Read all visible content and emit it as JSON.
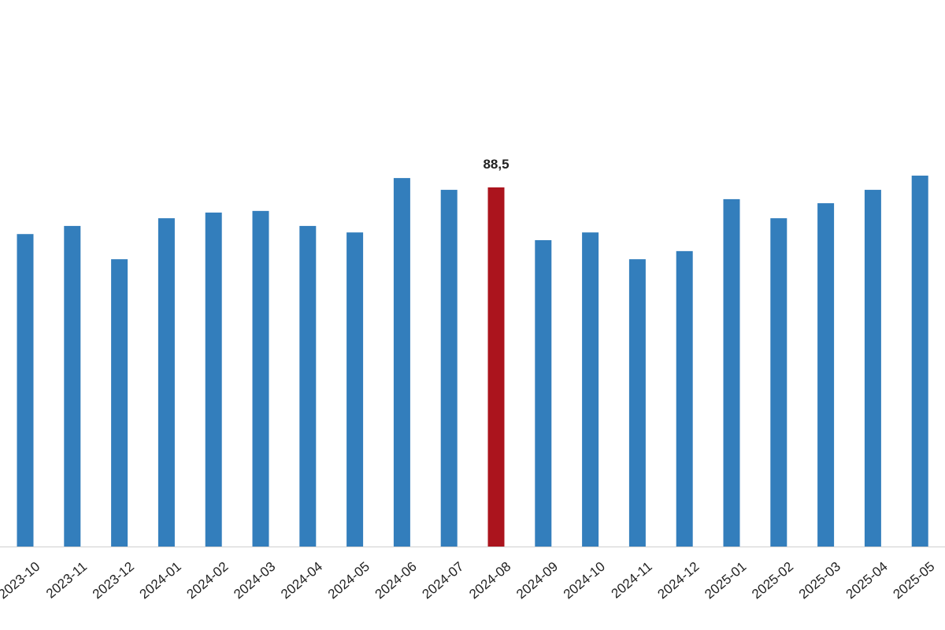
{
  "chart_data": {
    "type": "bar",
    "categories": [
      "2023-10",
      "2023-11",
      "2023-12",
      "2024-01",
      "2024-02",
      "2024-03",
      "2024-04",
      "2024-05",
      "2024-06",
      "2024-07",
      "2024-08",
      "2024-09",
      "2024-10",
      "2024-11",
      "2024-12",
      "2025-01",
      "2025-02",
      "2025-03",
      "2025-04",
      "2025-05"
    ],
    "values": [
      77.0,
      79.0,
      70.8,
      80.9,
      82.3,
      82.7,
      79.0,
      77.4,
      90.8,
      87.9,
      88.5,
      75.5,
      77.4,
      70.8,
      72.8,
      85.6,
      80.9,
      84.6,
      87.9,
      91.4
    ],
    "value_labels": [
      null,
      null,
      null,
      null,
      null,
      null,
      null,
      null,
      null,
      null,
      "88,5",
      null,
      null,
      null,
      null,
      null,
      null,
      null,
      null,
      null
    ],
    "colors": [
      "#337ebc",
      "#337ebc",
      "#337ebc",
      "#337ebc",
      "#337ebc",
      "#337ebc",
      "#337ebc",
      "#337ebc",
      "#337ebc",
      "#337ebc",
      "#ab141d",
      "#337ebc",
      "#337ebc",
      "#337ebc",
      "#337ebc",
      "#337ebc",
      "#337ebc",
      "#337ebc",
      "#337ebc",
      "#337ebc"
    ]
  }
}
